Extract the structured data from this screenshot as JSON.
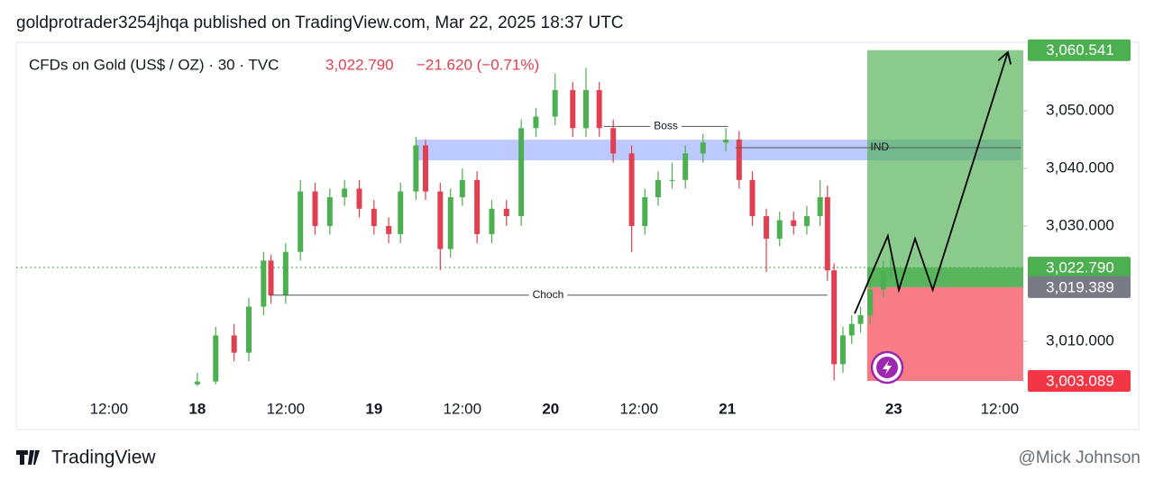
{
  "header": "goldprotrader3254jhqa published on TradingView.com, Mar 22, 2025 18:37 UTC",
  "footer": {
    "brand": "TradingView",
    "watermark": "@Mick Johnson"
  },
  "chart_data": {
    "type": "candlestick",
    "title": "CFDs on Gold (US$ / OZ) · 30 · TVC",
    "change": "−21.620 (−0.71%)",
    "last_price": {
      "value": 3022.79,
      "label": "3,022.790",
      "color": "#4caf50"
    },
    "up_color": "#4caf50",
    "down_color": "#e0404f",
    "x": [
      0,
      2.5,
      5,
      7,
      9,
      10,
      12,
      14,
      16,
      18,
      20,
      22,
      24,
      26,
      27.6,
      29.7,
      31,
      33,
      34.4,
      36,
      38,
      40,
      42,
      44,
      46,
      48.6,
      51,
      52.8,
      54.6,
      56.5,
      59,
      60.8,
      62.6,
      64.5,
      66.3,
      68.7,
      71.8,
      73.6,
      75.4,
      77.3,
      79.1,
      81,
      82.8,
      84.6,
      85.6,
      86.5,
      87.7,
      88.9,
      90.1,
      91.4,
      93.2,
      94.2
    ],
    "open": [
      3002.5,
      3003,
      3011,
      3008,
      3016,
      3024,
      3018,
      3025.5,
      3036,
      3030,
      3035,
      3036.5,
      3033,
      3030,
      3028.6,
      3036,
      3044,
      3036,
      3026,
      3035,
      3038,
      3028.6,
      3033,
      3031.7,
      3047,
      3049,
      3053.6,
      3047,
      3053.6,
      3047,
      3042.6,
      3030,
      3035,
      3038,
      3038,
      3042.6,
      3044.5,
      3045,
      3038,
      3031.7,
      3027.8,
      3031,
      3030,
      3031.7,
      3035,
      3022.3,
      3006,
      3011,
      3013,
      3014.5,
      3019,
      3022.3
    ],
    "high": [
      3004.5,
      3012.5,
      3013,
      3017.5,
      3025.5,
      3025,
      3027,
      3038,
      3037.5,
      3036.5,
      3038,
      3038,
      3034.5,
      3031.5,
      3037.5,
      3045.5,
      3045,
      3037.5,
      3036.5,
      3040,
      3039.5,
      3034.5,
      3034.5,
      3048.5,
      3050.5,
      3056.5,
      3055,
      3057.5,
      3055,
      3048.5,
      3044,
      3036.5,
      3039.5,
      3041,
      3044,
      3046,
      3047,
      3046.5,
      3039.5,
      3033,
      3032.5,
      3032.5,
      3033.5,
      3038,
      3037,
      3023.5,
      3012.5,
      3014.5,
      3016,
      3020.5,
      3024,
      3024.5
    ],
    "low": [
      3002.2,
      3002.5,
      3006.5,
      3006.5,
      3014.5,
      3016.5,
      3016.5,
      3024,
      3028.5,
      3028.5,
      3033.5,
      3031.5,
      3028.5,
      3027,
      3027,
      3034.5,
      3034.5,
      3022.3,
      3024.5,
      3033.5,
      3027,
      3027,
      3030,
      3030,
      3045.5,
      3047.5,
      3045.5,
      3045.5,
      3045.5,
      3041,
      3025.5,
      3028.5,
      3033.5,
      3036.5,
      3036.5,
      3041,
      3043,
      3036.5,
      3030,
      3022,
      3026.5,
      3028.5,
      3028.5,
      3030,
      3020.5,
      3003.2,
      3004.5,
      3009.5,
      3011.5,
      3013,
      3017.5,
      3021
    ],
    "close": [
      3003,
      3011,
      3008,
      3016,
      3024,
      3018,
      3025.5,
      3036,
      3030,
      3035,
      3036.5,
      3033,
      3030,
      3028.6,
      3036,
      3044,
      3036,
      3026,
      3035,
      3038,
      3028.6,
      3033,
      3031.7,
      3047,
      3049,
      3053.6,
      3047,
      3053.6,
      3047,
      3042.6,
      3030,
      3035,
      3038,
      3038,
      3042.6,
      3044.5,
      3045,
      3038,
      3031.7,
      3027.8,
      3031,
      3030,
      3031.7,
      3035,
      3022.3,
      3006,
      3011,
      3013,
      3014.5,
      3019,
      3022.3,
      3022.79
    ],
    "xlim": [
      -24.6,
      112.2
    ],
    "ylim": [
      3002.0,
      3061.9
    ],
    "xticks": [
      {
        "value": -12,
        "label": "12:00"
      },
      {
        "value": 0,
        "label": "18"
      },
      {
        "value": 12,
        "label": "12:00"
      },
      {
        "value": 24,
        "label": "19"
      },
      {
        "value": 36,
        "label": "12:00"
      },
      {
        "value": 48,
        "label": "20"
      },
      {
        "value": 60,
        "label": "12:00"
      },
      {
        "value": 72,
        "label": "21"
      },
      {
        "value": 94.6,
        "label": "23"
      },
      {
        "value": 109,
        "label": "12:00"
      }
    ],
    "yticks": [
      {
        "value": 3010,
        "label": "3,010.000"
      },
      {
        "value": 3030,
        "label": "3,030.000"
      },
      {
        "value": 3040,
        "label": "3,040.000"
      },
      {
        "value": 3050,
        "label": "3,050.000"
      }
    ],
    "zone": {
      "x": [
        29.7,
        111.9
      ],
      "y": [
        3041.4,
        3045
      ],
      "color": "#9fb4ff"
    },
    "lines": [
      {
        "label": "Boss",
        "x": [
          55.2,
          72.1
        ],
        "y": 3047.3
      },
      {
        "label": "Choch",
        "x": [
          9.7,
          85.6
        ],
        "y": 3018
      },
      {
        "label": "IND",
        "x": [
          73.1,
          111.9
        ],
        "y": 3043.6
      }
    ],
    "position": {
      "x": [
        91,
        112.2
      ],
      "target": {
        "value": 3060.541,
        "label": "3,060.541",
        "color": "#4caf50"
      },
      "entry": {
        "value": 3019.389,
        "label": "3,019.389",
        "color": "#787b86"
      },
      "stop": {
        "value": 3003.089,
        "label": "3,003.089",
        "color": "#f23645"
      }
    },
    "projection": {
      "x": [
        89.3,
        93.8,
        95.3,
        97.5,
        99.9,
        110.1
      ],
      "y": [
        3014.8,
        3028.3,
        3018.9,
        3027.8,
        3018.9,
        3060.2
      ]
    }
  }
}
